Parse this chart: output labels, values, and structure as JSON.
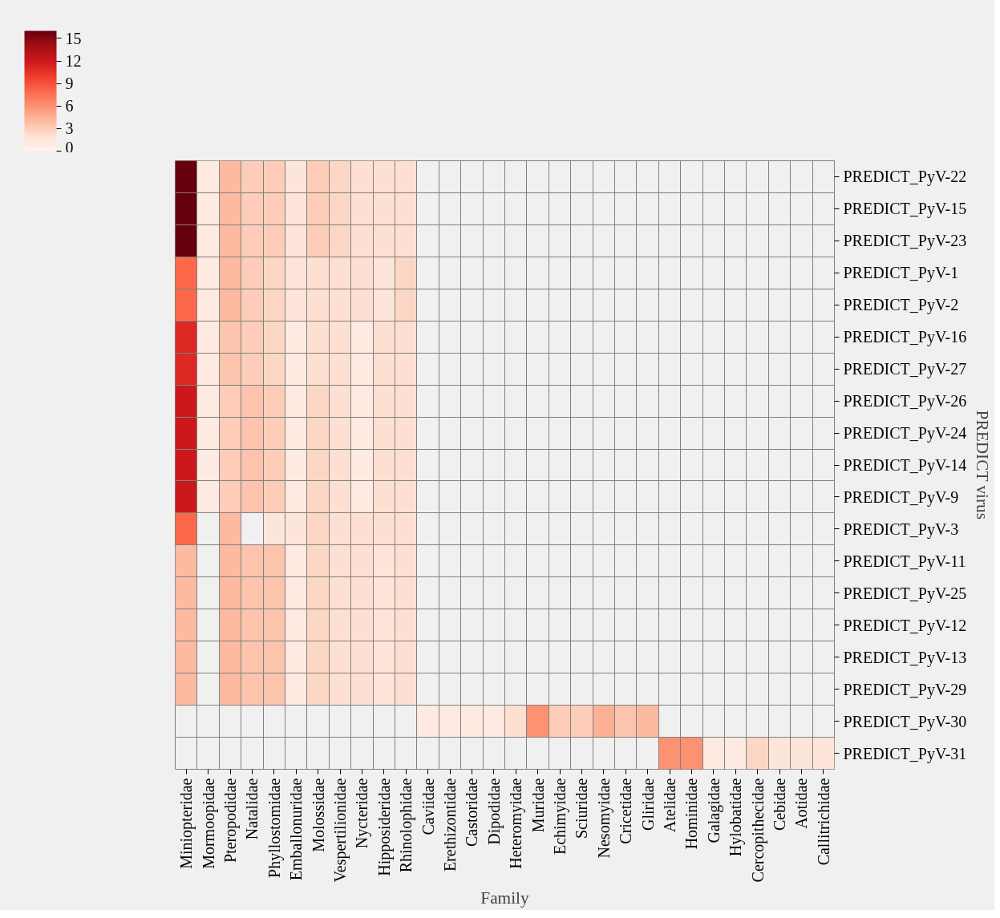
{
  "chart_data": {
    "type": "heatmap",
    "xlabel": "Family",
    "ylabel": "PREDICT virus",
    "categories": [
      "Miniopteridae",
      "Mormoopidae",
      "Pteropodidae",
      "Natalidae",
      "Phyllostomidae",
      "Emballonuridae",
      "Molossidae",
      "Vespertilionidae",
      "Nycteridae",
      "Hipposideridae",
      "Rhinolophidae",
      "Caviidae",
      "Erethizontidae",
      "Castoridae",
      "Dipodidae",
      "Heteromyidae",
      "Muridae",
      "Echimyidae",
      "Sciuridae",
      "Nesomyidae",
      "Cricetidae",
      "Gliridae",
      "Atelidae",
      "Hominidae",
      "Galagidae",
      "Hylobatidae",
      "Cercopithecidae",
      "Cebidae",
      "Aotidae",
      "Callitrichidae"
    ],
    "y_categories": [
      "PREDICT_PyV-22",
      "PREDICT_PyV-15",
      "PREDICT_PyV-23",
      "PREDICT_PyV-1",
      "PREDICT_PyV-2",
      "PREDICT_PyV-16",
      "PREDICT_PyV-27",
      "PREDICT_PyV-26",
      "PREDICT_PyV-24",
      "PREDICT_PyV-14",
      "PREDICT_PyV-9",
      "PREDICT_PyV-3",
      "PREDICT_PyV-11",
      "PREDICT_PyV-25",
      "PREDICT_PyV-12",
      "PREDICT_PyV-13",
      "PREDICT_PyV-29",
      "PREDICT_PyV-30",
      "PREDICT_PyV-31"
    ],
    "cells": [
      [
        16,
        1,
        4,
        3,
        3,
        1.5,
        3,
        2.5,
        2,
        2,
        2,
        null,
        null,
        null,
        null,
        null,
        null,
        null,
        null,
        null,
        null,
        null,
        null,
        null,
        null,
        null,
        null,
        null,
        null,
        null
      ],
      [
        16,
        1,
        4,
        3,
        3,
        1.5,
        3,
        2.5,
        2,
        2,
        2,
        null,
        null,
        null,
        null,
        null,
        null,
        null,
        null,
        null,
        null,
        null,
        null,
        null,
        null,
        null,
        null,
        null,
        null,
        null
      ],
      [
        16,
        1,
        4,
        3,
        3,
        1.5,
        3,
        2.5,
        2,
        2,
        2,
        null,
        null,
        null,
        null,
        null,
        null,
        null,
        null,
        null,
        null,
        null,
        null,
        null,
        null,
        null,
        null,
        null,
        null,
        null
      ],
      [
        8,
        1,
        4,
        3,
        2.5,
        1.5,
        2,
        2,
        2,
        1.5,
        2.5,
        null,
        null,
        null,
        null,
        null,
        null,
        null,
        null,
        null,
        null,
        null,
        null,
        null,
        null,
        null,
        null,
        null,
        null,
        null
      ],
      [
        8,
        1,
        4,
        3,
        2.5,
        1.5,
        2,
        2,
        2,
        1.5,
        2.5,
        null,
        null,
        null,
        null,
        null,
        null,
        null,
        null,
        null,
        null,
        null,
        null,
        null,
        null,
        null,
        null,
        null,
        null,
        null
      ],
      [
        11,
        1,
        3.5,
        3,
        2.5,
        1,
        2,
        2,
        1,
        2,
        2,
        null,
        null,
        null,
        null,
        null,
        null,
        null,
        null,
        null,
        null,
        null,
        null,
        null,
        null,
        null,
        null,
        null,
        null,
        null
      ],
      [
        11,
        1,
        3.5,
        3,
        2.5,
        1,
        2,
        2,
        1,
        2,
        2,
        null,
        null,
        null,
        null,
        null,
        null,
        null,
        null,
        null,
        null,
        null,
        null,
        null,
        null,
        null,
        null,
        null,
        null,
        null
      ],
      [
        12,
        1,
        3,
        3.5,
        3,
        1,
        2.5,
        2,
        1,
        2,
        2,
        null,
        null,
        null,
        null,
        null,
        null,
        null,
        null,
        null,
        null,
        null,
        null,
        null,
        null,
        null,
        null,
        null,
        null,
        null
      ],
      [
        12,
        1,
        3,
        3.5,
        3,
        1,
        2.5,
        2,
        1,
        2,
        2,
        null,
        null,
        null,
        null,
        null,
        null,
        null,
        null,
        null,
        null,
        null,
        null,
        null,
        null,
        null,
        null,
        null,
        null,
        null
      ],
      [
        12,
        1,
        3,
        3.5,
        3,
        1,
        2.5,
        2,
        1,
        2,
        2,
        null,
        null,
        null,
        null,
        null,
        null,
        null,
        null,
        null,
        null,
        null,
        null,
        null,
        null,
        null,
        null,
        null,
        null,
        null
      ],
      [
        12,
        1,
        3,
        3.5,
        3,
        1,
        2.5,
        2,
        1,
        2,
        2,
        null,
        null,
        null,
        null,
        null,
        null,
        null,
        null,
        null,
        null,
        null,
        null,
        null,
        null,
        null,
        null,
        null,
        null,
        null
      ],
      [
        8,
        null,
        4,
        null,
        1.5,
        1.5,
        2.5,
        2,
        2,
        2,
        2,
        null,
        null,
        null,
        null,
        null,
        null,
        null,
        null,
        null,
        null,
        null,
        null,
        null,
        null,
        null,
        null,
        null,
        null,
        null
      ],
      [
        4,
        null,
        4,
        3.5,
        3.5,
        1,
        2.5,
        2,
        2,
        1.5,
        2,
        null,
        null,
        null,
        null,
        null,
        null,
        null,
        null,
        null,
        null,
        null,
        null,
        null,
        null,
        null,
        null,
        null,
        null,
        null
      ],
      [
        4,
        null,
        4,
        3.5,
        3.5,
        1,
        2.5,
        2,
        2,
        1.5,
        2,
        null,
        null,
        null,
        null,
        null,
        null,
        null,
        null,
        null,
        null,
        null,
        null,
        null,
        null,
        null,
        null,
        null,
        null,
        null
      ],
      [
        4,
        null,
        4,
        3.5,
        3.5,
        1,
        2.5,
        2,
        2,
        1.5,
        2,
        null,
        null,
        null,
        null,
        null,
        null,
        null,
        null,
        null,
        null,
        null,
        null,
        null,
        null,
        null,
        null,
        null,
        null,
        null
      ],
      [
        4,
        null,
        4,
        3.5,
        3.5,
        1,
        2.5,
        2,
        2,
        1.5,
        2,
        null,
        null,
        null,
        null,
        null,
        null,
        null,
        null,
        null,
        null,
        null,
        null,
        null,
        null,
        null,
        null,
        null,
        null,
        null
      ],
      [
        4,
        null,
        4,
        3.5,
        3.5,
        1,
        2.5,
        2,
        2,
        1.5,
        2,
        null,
        null,
        null,
        null,
        null,
        null,
        null,
        null,
        null,
        null,
        null,
        null,
        null,
        null,
        null,
        null,
        null,
        null,
        null
      ],
      [
        null,
        null,
        null,
        null,
        null,
        null,
        null,
        null,
        null,
        null,
        null,
        1,
        1,
        1,
        1,
        2,
        6,
        3,
        3,
        4.5,
        3.5,
        4,
        null,
        null,
        null,
        null,
        null,
        null,
        null,
        null
      ],
      [
        null,
        null,
        null,
        null,
        null,
        null,
        null,
        null,
        null,
        null,
        null,
        null,
        null,
        null,
        null,
        null,
        null,
        null,
        null,
        null,
        null,
        null,
        6,
        6,
        1,
        1,
        2.5,
        1.5,
        1.5,
        1.5
      ]
    ],
    "clim": [
      0,
      16
    ],
    "cticks": [
      0,
      3,
      6,
      9,
      12,
      15
    ]
  }
}
